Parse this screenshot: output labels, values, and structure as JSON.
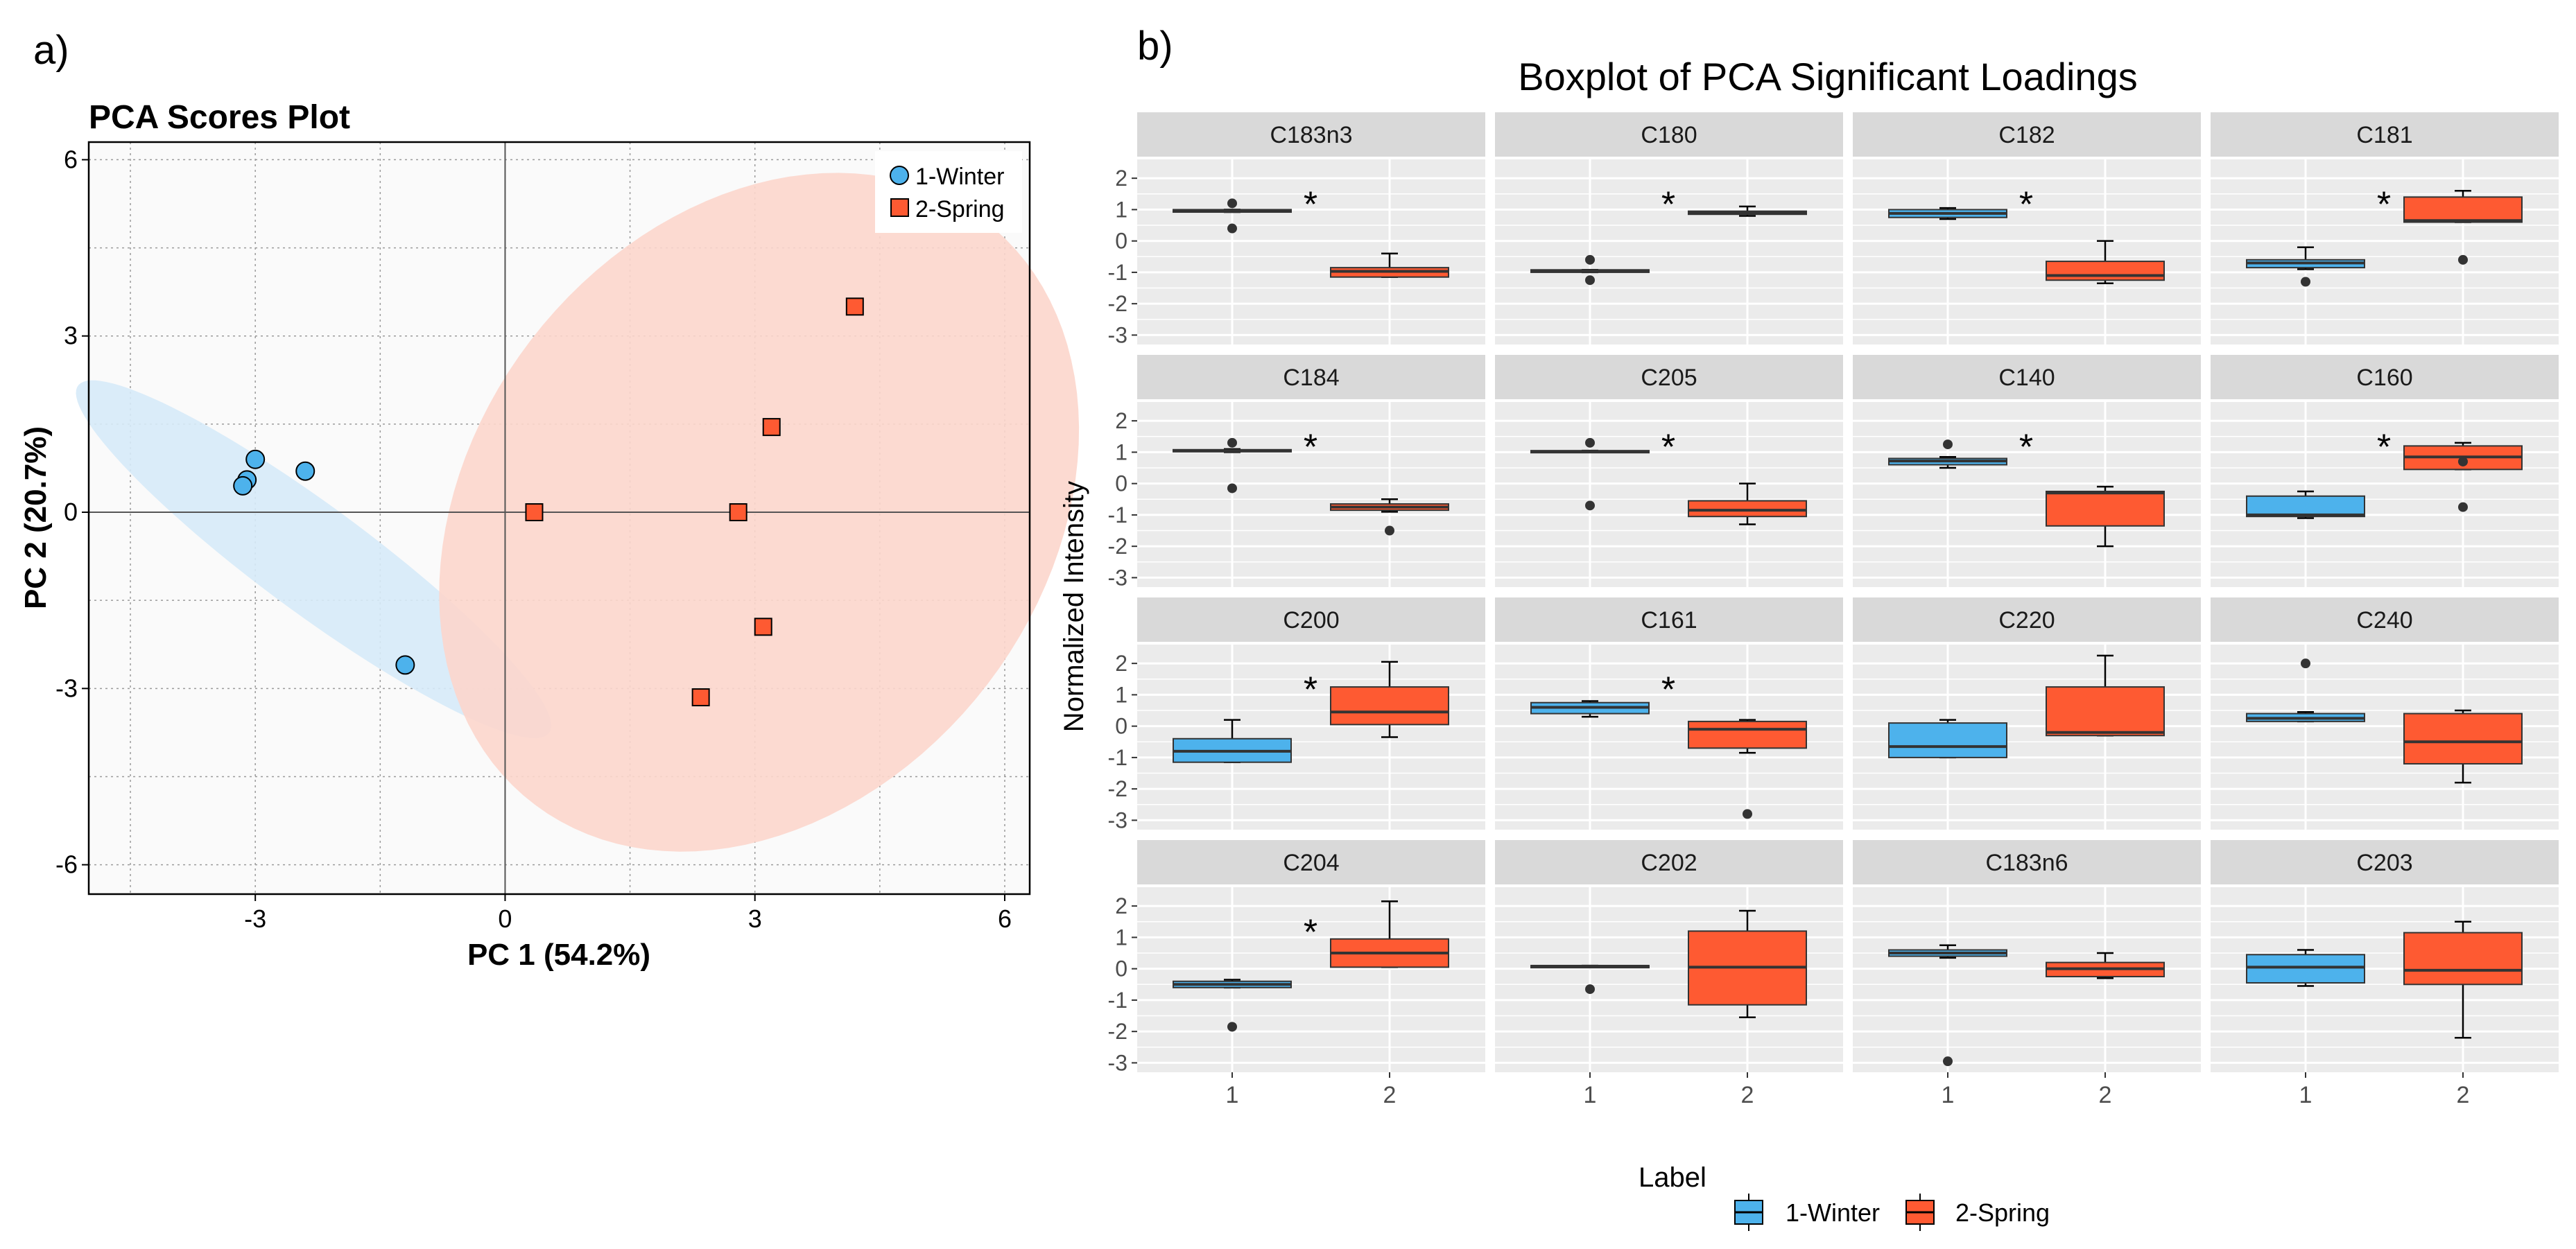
{
  "panel_labels": {
    "a": "a)",
    "b": "b)"
  },
  "colors": {
    "winter": "#4db2ec",
    "spring": "#fe5a32",
    "winter_fill": "#d6eaf8",
    "spring_fill": "#fcd6cc",
    "facet_strip": "#d9d9d9",
    "facet_bg": "#ebebeb"
  },
  "chart_data": [
    {
      "type": "scatter",
      "title": "PCA Scores Plot",
      "xlabel": "PC 1 (54.2%)",
      "ylabel": "PC 2 (20.7%)",
      "xlim": [
        -5,
        6.3
      ],
      "ylim": [
        -6.5,
        6.3
      ],
      "xticks": [
        -3,
        0,
        3,
        6
      ],
      "yticks": [
        -6,
        -3,
        0,
        3,
        6
      ],
      "xtick_labels": [
        "-3",
        "0",
        "3",
        "6"
      ],
      "ytick_labels": [
        "-6",
        "-3",
        "0",
        "3",
        "6"
      ],
      "legend": {
        "position": "top-right",
        "entries": [
          "1-Winter",
          "2-Spring"
        ]
      },
      "series": [
        {
          "name": "1-Winter",
          "marker": "circle",
          "points": [
            [
              -3.0,
              0.9
            ],
            [
              -3.1,
              0.55
            ],
            [
              -3.15,
              0.45
            ],
            [
              -2.4,
              0.7
            ],
            [
              -1.2,
              -2.6
            ]
          ],
          "ellipse": {
            "center": [
              -2.3,
              -0.8
            ],
            "semi_major": 4.1,
            "semi_minor": 0.78,
            "angle_deg": -47
          }
        },
        {
          "name": "2-Spring",
          "marker": "square",
          "points": [
            [
              4.2,
              3.5
            ],
            [
              3.2,
              1.45
            ],
            [
              0.35,
              0.0
            ],
            [
              2.8,
              0.0
            ],
            [
              3.1,
              -1.95
            ],
            [
              2.35,
              -3.15
            ]
          ],
          "ellipse": {
            "center": [
              3.05,
              0.0
            ],
            "semi_major": 5.9,
            "semi_minor": 3.65,
            "angle_deg": 75
          }
        }
      ]
    },
    {
      "type": "box",
      "title": "Boxplot of PCA Significant Loadings",
      "ylabel": "Normalized Intensity",
      "xtick_labels": [
        "1",
        "2"
      ],
      "yticks": [
        2,
        1,
        0,
        -1,
        -2,
        -3
      ],
      "ylim": [
        -3.3,
        2.6
      ],
      "legend": {
        "title": "Label",
        "position": "bottom",
        "entries": [
          "1-Winter",
          "2-Spring"
        ]
      },
      "facets": [
        {
          "name": "C183n3",
          "sig": "*",
          "groups": [
            {
              "q1": 0.92,
              "med": 0.97,
              "q3": 1.0,
              "wlo": 0.92,
              "whi": 1.0,
              "out": [
                1.2,
                0.4
              ]
            },
            {
              "q1": -1.15,
              "med": -0.97,
              "q3": -0.85,
              "wlo": -1.15,
              "whi": -0.4,
              "out": []
            }
          ]
        },
        {
          "name": "C180",
          "sig": "*",
          "groups": [
            {
              "q1": -1.0,
              "med": -0.95,
              "q3": -0.92,
              "wlo": -1.0,
              "whi": -0.92,
              "out": [
                -0.6,
                -1.25
              ]
            },
            {
              "q1": 0.85,
              "med": 0.9,
              "q3": 0.95,
              "wlo": 0.8,
              "whi": 1.1,
              "out": []
            }
          ]
        },
        {
          "name": "C182",
          "sig": "*",
          "groups": [
            {
              "q1": 0.75,
              "med": 0.88,
              "q3": 1.0,
              "wlo": 0.7,
              "whi": 1.05,
              "out": []
            },
            {
              "q1": -1.25,
              "med": -1.1,
              "q3": -0.65,
              "wlo": -1.35,
              "whi": 0.0,
              "out": []
            }
          ]
        },
        {
          "name": "C181",
          "sig": "*",
          "groups": [
            {
              "q1": -0.85,
              "med": -0.7,
              "q3": -0.6,
              "wlo": -0.9,
              "whi": -0.2,
              "out": [
                -1.3
              ]
            },
            {
              "q1": 0.6,
              "med": 0.65,
              "q3": 1.4,
              "wlo": 0.6,
              "whi": 1.6,
              "out": [
                -0.6
              ]
            }
          ]
        },
        {
          "name": "C184",
          "sig": "*",
          "groups": [
            {
              "q1": 1.02,
              "med": 1.05,
              "q3": 1.08,
              "wlo": 1.0,
              "whi": 1.1,
              "out": [
                1.3,
                -0.15
              ]
            },
            {
              "q1": -0.85,
              "med": -0.75,
              "q3": -0.65,
              "wlo": -0.9,
              "whi": -0.5,
              "out": [
                -1.5
              ]
            }
          ]
        },
        {
          "name": "C205",
          "sig": "*",
          "groups": [
            {
              "q1": 1.0,
              "med": 1.02,
              "q3": 1.05,
              "wlo": 1.0,
              "whi": 1.05,
              "out": [
                1.3,
                -0.7
              ]
            },
            {
              "q1": -1.05,
              "med": -0.85,
              "q3": -0.55,
              "wlo": -1.3,
              "whi": 0.0,
              "out": []
            }
          ]
        },
        {
          "name": "C140",
          "sig": "*",
          "groups": [
            {
              "q1": 0.6,
              "med": 0.72,
              "q3": 0.8,
              "wlo": 0.5,
              "whi": 0.85,
              "out": [
                1.25
              ]
            },
            {
              "q1": -1.35,
              "med": -0.3,
              "q3": -0.25,
              "wlo": -2.0,
              "whi": -0.1,
              "out": []
            }
          ]
        },
        {
          "name": "C160",
          "sig": "*",
          "groups": [
            {
              "q1": -1.05,
              "med": -1.0,
              "q3": -0.4,
              "wlo": -1.1,
              "whi": -0.25,
              "out": []
            },
            {
              "q1": 0.45,
              "med": 0.85,
              "q3": 1.2,
              "wlo": 0.45,
              "whi": 1.3,
              "out": [
                0.7,
                -0.75
              ]
            }
          ]
        },
        {
          "name": "C200",
          "sig": "*",
          "groups": [
            {
              "q1": -1.15,
              "med": -0.8,
              "q3": -0.4,
              "wlo": -1.15,
              "whi": 0.2,
              "out": []
            },
            {
              "q1": 0.05,
              "med": 0.45,
              "q3": 1.25,
              "wlo": -0.35,
              "whi": 2.05,
              "out": []
            }
          ]
        },
        {
          "name": "C161",
          "sig": "*",
          "groups": [
            {
              "q1": 0.4,
              "med": 0.6,
              "q3": 0.75,
              "wlo": 0.3,
              "whi": 0.8,
              "out": []
            },
            {
              "q1": -0.7,
              "med": -0.1,
              "q3": 0.15,
              "wlo": -0.85,
              "whi": 0.2,
              "out": [
                -2.8
              ]
            }
          ]
        },
        {
          "name": "C220",
          "sig": "",
          "groups": [
            {
              "q1": -1.0,
              "med": -0.65,
              "q3": 0.1,
              "wlo": -1.0,
              "whi": 0.2,
              "out": []
            },
            {
              "q1": -0.3,
              "med": -0.2,
              "q3": 1.25,
              "wlo": -0.3,
              "whi": 2.25,
              "out": []
            }
          ]
        },
        {
          "name": "C240",
          "sig": "",
          "groups": [
            {
              "q1": 0.15,
              "med": 0.25,
              "q3": 0.4,
              "wlo": 0.15,
              "whi": 0.45,
              "out": [
                2.0
              ]
            },
            {
              "q1": -1.2,
              "med": -0.5,
              "q3": 0.4,
              "wlo": -1.8,
              "whi": 0.5,
              "out": []
            }
          ]
        },
        {
          "name": "C204",
          "sig": "*",
          "groups": [
            {
              "q1": -0.6,
              "med": -0.5,
              "q3": -0.4,
              "wlo": -0.6,
              "whi": -0.35,
              "out": [
                -1.85
              ]
            },
            {
              "q1": 0.05,
              "med": 0.5,
              "q3": 0.95,
              "wlo": 0.05,
              "whi": 2.15,
              "out": []
            }
          ]
        },
        {
          "name": "C202",
          "sig": "",
          "groups": [
            {
              "q1": 0.05,
              "med": 0.08,
              "q3": 0.1,
              "wlo": 0.05,
              "whi": 0.1,
              "out": [
                -0.65
              ]
            },
            {
              "q1": -1.15,
              "med": 0.05,
              "q3": 1.2,
              "wlo": -1.55,
              "whi": 1.85,
              "out": []
            }
          ]
        },
        {
          "name": "C183n6",
          "sig": "",
          "groups": [
            {
              "q1": 0.4,
              "med": 0.5,
              "q3": 0.6,
              "wlo": 0.35,
              "whi": 0.75,
              "out": [
                -2.95
              ]
            },
            {
              "q1": -0.25,
              "med": 0.0,
              "q3": 0.2,
              "wlo": -0.3,
              "whi": 0.5,
              "out": []
            }
          ]
        },
        {
          "name": "C203",
          "sig": "",
          "groups": [
            {
              "q1": -0.45,
              "med": 0.05,
              "q3": 0.45,
              "wlo": -0.55,
              "whi": 0.6,
              "out": []
            },
            {
              "q1": -0.5,
              "med": -0.05,
              "q3": 1.15,
              "wlo": -2.2,
              "whi": 1.5,
              "out": []
            }
          ]
        }
      ]
    }
  ]
}
